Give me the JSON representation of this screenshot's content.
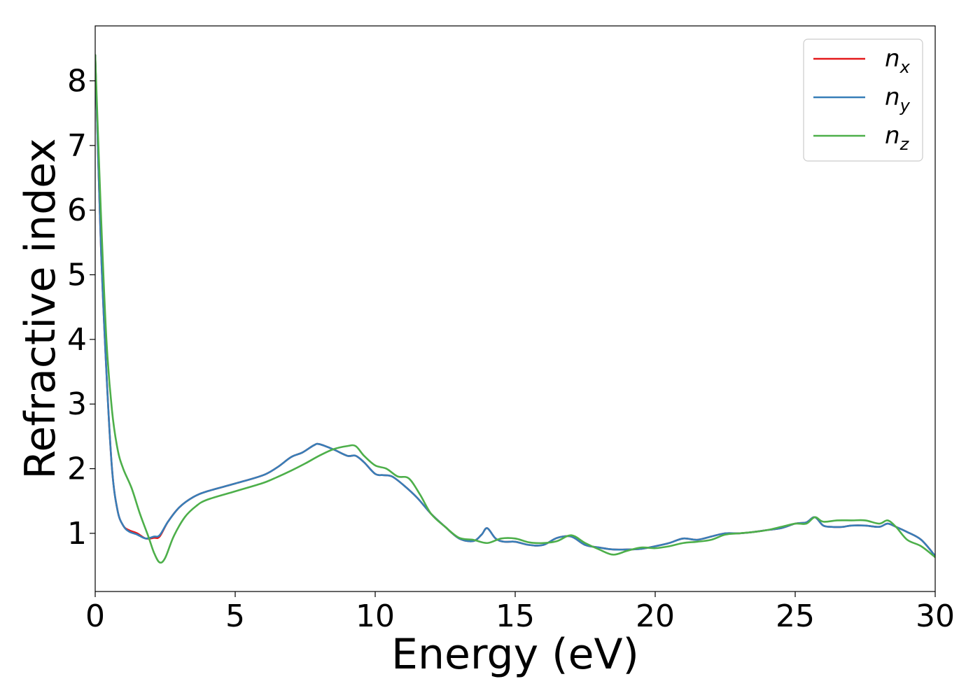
{
  "chart_data": {
    "type": "line",
    "xlabel": "Energy (eV)",
    "ylabel": "Refractive index",
    "xlim": [
      0,
      30
    ],
    "ylim": [
      0.1,
      8.85
    ],
    "xticks": [
      0,
      5,
      10,
      15,
      20,
      25,
      30
    ],
    "yticks": [
      1,
      2,
      3,
      4,
      5,
      6,
      7,
      8
    ],
    "grid": false,
    "legend_position": "top-right",
    "series": [
      {
        "name": "n_x",
        "label_main": "n",
        "label_sub": "x",
        "color": "#e41a1c",
        "x": [
          0,
          0.2,
          0.4,
          0.6,
          0.8,
          1.0,
          1.2,
          1.5,
          1.8,
          2.1,
          2.3,
          2.6,
          3.0,
          3.5,
          4.0,
          5.0,
          6.0,
          6.5,
          7.0,
          7.4,
          7.8,
          8.0,
          8.5,
          9.0,
          9.3,
          9.6,
          10.0,
          10.3,
          10.6,
          11.0,
          11.5,
          12.0,
          12.5,
          13.0,
          13.5,
          13.8,
          14.0,
          14.3,
          14.6,
          15.0,
          15.5,
          16.0,
          16.5,
          17.0,
          17.5,
          18.0,
          18.5,
          19.0,
          19.5,
          20.0,
          20.5,
          21.0,
          21.5,
          22.0,
          22.5,
          23.0,
          23.5,
          24.0,
          24.5,
          25.0,
          25.4,
          25.7,
          26.0,
          26.3,
          26.7,
          27.0,
          27.5,
          28.0,
          28.3,
          28.6,
          29.0,
          29.5,
          30.0
        ],
        "y": [
          8.4,
          5.5,
          3.5,
          2.0,
          1.35,
          1.12,
          1.05,
          1.0,
          0.92,
          0.93,
          0.95,
          1.18,
          1.4,
          1.56,
          1.65,
          1.77,
          1.9,
          2.02,
          2.18,
          2.25,
          2.36,
          2.38,
          2.3,
          2.2,
          2.2,
          2.1,
          1.92,
          1.9,
          1.88,
          1.75,
          1.55,
          1.3,
          1.1,
          0.92,
          0.88,
          0.98,
          1.08,
          0.92,
          0.87,
          0.87,
          0.82,
          0.82,
          0.93,
          0.95,
          0.82,
          0.78,
          0.75,
          0.75,
          0.76,
          0.8,
          0.85,
          0.92,
          0.9,
          0.95,
          1.0,
          1.0,
          1.02,
          1.05,
          1.08,
          1.15,
          1.17,
          1.25,
          1.12,
          1.1,
          1.1,
          1.12,
          1.12,
          1.1,
          1.15,
          1.1,
          1.02,
          0.9,
          0.65
        ]
      },
      {
        "name": "n_y",
        "label_main": "n",
        "label_sub": "y",
        "color": "#377eb8",
        "x": [
          0,
          0.2,
          0.4,
          0.6,
          0.8,
          1.0,
          1.2,
          1.5,
          1.8,
          2.1,
          2.3,
          2.6,
          3.0,
          3.5,
          4.0,
          5.0,
          6.0,
          6.5,
          7.0,
          7.4,
          7.8,
          8.0,
          8.5,
          9.0,
          9.3,
          9.6,
          10.0,
          10.3,
          10.6,
          11.0,
          11.5,
          12.0,
          12.5,
          13.0,
          13.5,
          13.8,
          14.0,
          14.3,
          14.6,
          15.0,
          15.5,
          16.0,
          16.5,
          17.0,
          17.5,
          18.0,
          18.5,
          19.0,
          19.5,
          20.0,
          20.5,
          21.0,
          21.5,
          22.0,
          22.5,
          23.0,
          23.5,
          24.0,
          24.5,
          25.0,
          25.4,
          25.7,
          26.0,
          26.3,
          26.7,
          27.0,
          27.5,
          28.0,
          28.3,
          28.6,
          29.0,
          29.5,
          30.0
        ],
        "y": [
          8.4,
          5.5,
          3.5,
          2.0,
          1.35,
          1.12,
          1.03,
          0.98,
          0.92,
          0.95,
          0.97,
          1.18,
          1.4,
          1.56,
          1.65,
          1.77,
          1.9,
          2.02,
          2.18,
          2.25,
          2.36,
          2.38,
          2.3,
          2.2,
          2.2,
          2.1,
          1.92,
          1.9,
          1.88,
          1.75,
          1.55,
          1.3,
          1.1,
          0.92,
          0.88,
          0.98,
          1.08,
          0.92,
          0.87,
          0.87,
          0.82,
          0.82,
          0.93,
          0.95,
          0.82,
          0.78,
          0.75,
          0.75,
          0.76,
          0.8,
          0.85,
          0.92,
          0.9,
          0.95,
          1.0,
          1.0,
          1.02,
          1.05,
          1.08,
          1.15,
          1.17,
          1.25,
          1.12,
          1.1,
          1.1,
          1.12,
          1.12,
          1.1,
          1.15,
          1.1,
          1.02,
          0.9,
          0.65
        ]
      },
      {
        "name": "n_z",
        "label_main": "n",
        "label_sub": "z",
        "color": "#4daf4a",
        "x": [
          0,
          0.2,
          0.4,
          0.6,
          0.8,
          1.0,
          1.3,
          1.6,
          1.9,
          2.1,
          2.3,
          2.5,
          2.8,
          3.2,
          3.6,
          4.0,
          5.0,
          6.0,
          6.5,
          7.0,
          7.5,
          8.0,
          8.5,
          9.0,
          9.3,
          9.6,
          10.0,
          10.4,
          10.8,
          11.2,
          11.6,
          12.0,
          12.5,
          13.0,
          13.5,
          14.0,
          14.5,
          15.0,
          15.5,
          16.0,
          16.5,
          17.0,
          17.5,
          18.0,
          18.5,
          19.0,
          19.5,
          20.0,
          20.5,
          21.0,
          21.5,
          22.0,
          22.5,
          23.0,
          23.5,
          24.0,
          24.5,
          25.0,
          25.4,
          25.7,
          26.0,
          26.5,
          27.0,
          27.5,
          28.0,
          28.3,
          28.6,
          29.0,
          29.5,
          30.0
        ],
        "y": [
          8.4,
          6.0,
          4.0,
          2.9,
          2.3,
          2.0,
          1.7,
          1.3,
          0.95,
          0.7,
          0.55,
          0.62,
          0.95,
          1.25,
          1.42,
          1.52,
          1.65,
          1.78,
          1.87,
          1.97,
          2.08,
          2.2,
          2.3,
          2.35,
          2.35,
          2.2,
          2.05,
          2.0,
          1.88,
          1.85,
          1.6,
          1.3,
          1.1,
          0.93,
          0.9,
          0.85,
          0.92,
          0.92,
          0.86,
          0.85,
          0.88,
          0.97,
          0.85,
          0.75,
          0.67,
          0.73,
          0.78,
          0.77,
          0.8,
          0.85,
          0.87,
          0.9,
          0.98,
          1.0,
          1.02,
          1.05,
          1.1,
          1.15,
          1.15,
          1.25,
          1.18,
          1.2,
          1.2,
          1.2,
          1.15,
          1.2,
          1.1,
          0.9,
          0.8,
          0.63
        ]
      }
    ]
  }
}
